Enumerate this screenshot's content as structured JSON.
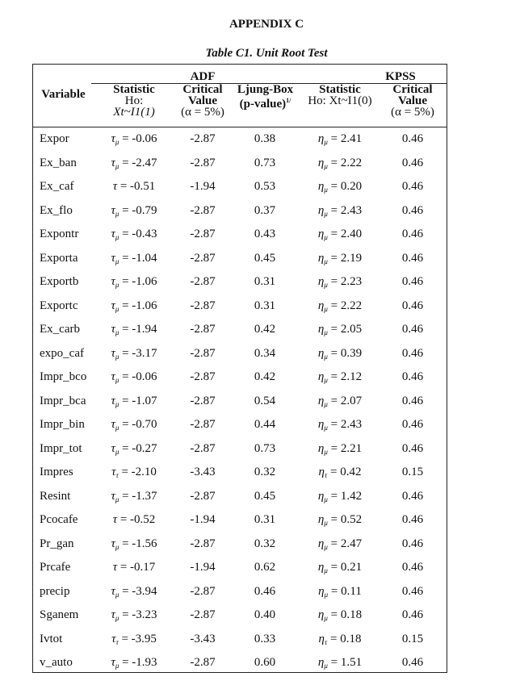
{
  "title": "APPENDIX C",
  "caption": "Table C1. Unit Root Test",
  "headers": {
    "variable": "Variable",
    "adf": "ADF",
    "kpss": "KPSS",
    "adf_stat": [
      "Statistic",
      "Ho:",
      "Xt~I1(1)"
    ],
    "adf_crit": [
      "Critical",
      "Value",
      "(α = 5%)"
    ],
    "ljung": [
      "Ljung-Box",
      "(p-value)",
      "1/"
    ],
    "kpss_stat": [
      "Statistic",
      "Ho: Xt~I1(0)"
    ],
    "kpss_crit": [
      "Critical",
      "Value",
      "(α = 5%)"
    ]
  },
  "rows": [
    {
      "variable": "Expor",
      "adf_sym": "τ",
      "adf_sub": "μ",
      "adf_stat": "= -0.06",
      "adf_crit": "-2.87",
      "ljung": "0.38",
      "kpss_sym": "η",
      "kpss_sub": "μ",
      "kpss_stat": "= 2.41",
      "kpss_crit": "0.46"
    },
    {
      "variable": "Ex_ban",
      "adf_sym": "τ",
      "adf_sub": "μ",
      "adf_stat": "= -2.47",
      "adf_crit": "-2.87",
      "ljung": "0.73",
      "kpss_sym": "η",
      "kpss_sub": "μ",
      "kpss_stat": "= 2.22",
      "kpss_crit": "0.46"
    },
    {
      "variable": "Ex_caf",
      "adf_sym": "τ",
      "adf_sub": "",
      "adf_stat": "= -0.51",
      "adf_crit": "-1.94",
      "ljung": "0.53",
      "kpss_sym": "η",
      "kpss_sub": "μ",
      "kpss_stat": "= 0.20",
      "kpss_crit": "0.46"
    },
    {
      "variable": "Ex_flo",
      "adf_sym": "τ",
      "adf_sub": "μ",
      "adf_stat": "= -0.79",
      "adf_crit": "-2.87",
      "ljung": "0.37",
      "kpss_sym": "η",
      "kpss_sub": "μ",
      "kpss_stat": "= 2.43",
      "kpss_crit": "0.46"
    },
    {
      "variable": "Expontr",
      "adf_sym": "τ",
      "adf_sub": "μ",
      "adf_stat": "= -0.43",
      "adf_crit": "-2.87",
      "ljung": "0.43",
      "kpss_sym": "η",
      "kpss_sub": "μ",
      "kpss_stat": "= 2.40",
      "kpss_crit": "0.46"
    },
    {
      "variable": "Exporta",
      "adf_sym": "τ",
      "adf_sub": "μ",
      "adf_stat": "= -1.04",
      "adf_crit": "-2.87",
      "ljung": "0.45",
      "kpss_sym": "η",
      "kpss_sub": "μ",
      "kpss_stat": "= 2.19",
      "kpss_crit": "0.46"
    },
    {
      "variable": "Exportb",
      "adf_sym": "τ",
      "adf_sub": "μ",
      "adf_stat": "= -1.06",
      "adf_crit": "-2.87",
      "ljung": "0.31",
      "kpss_sym": "η",
      "kpss_sub": "μ",
      "kpss_stat": "= 2.23",
      "kpss_crit": "0.46"
    },
    {
      "variable": "Exportc",
      "adf_sym": "τ",
      "adf_sub": "μ",
      "adf_stat": "= -1.06",
      "adf_crit": "-2.87",
      "ljung": "0.31",
      "kpss_sym": "η",
      "kpss_sub": "μ",
      "kpss_stat": "= 2.22",
      "kpss_crit": "0.46"
    },
    {
      "variable": "Ex_carb",
      "adf_sym": "τ",
      "adf_sub": "μ",
      "adf_stat": "= -1.94",
      "adf_crit": "-2.87",
      "ljung": "0.42",
      "kpss_sym": "η",
      "kpss_sub": "μ",
      "kpss_stat": "= 2.05",
      "kpss_crit": "0.46"
    },
    {
      "variable": "expo_caf",
      "adf_sym": "τ",
      "adf_sub": "μ",
      "adf_stat": "= -3.17",
      "adf_crit": "-2.87",
      "ljung": "0.34",
      "kpss_sym": "η",
      "kpss_sub": "μ",
      "kpss_stat": "= 0.39",
      "kpss_crit": "0.46"
    },
    {
      "variable": "Impr_bco",
      "adf_sym": "τ",
      "adf_sub": "μ",
      "adf_stat": "= -0.06",
      "adf_crit": "-2.87",
      "ljung": "0.42",
      "kpss_sym": "η",
      "kpss_sub": "μ",
      "kpss_stat": "= 2.12",
      "kpss_crit": "0.46"
    },
    {
      "variable": "Impr_bca",
      "adf_sym": "τ",
      "adf_sub": "μ",
      "adf_stat": "= -1.07",
      "adf_crit": "-2.87",
      "ljung": "0.54",
      "kpss_sym": "η",
      "kpss_sub": "μ",
      "kpss_stat": "= 2.07",
      "kpss_crit": "0.46"
    },
    {
      "variable": "Impr_bin",
      "adf_sym": "τ",
      "adf_sub": "μ",
      "adf_stat": "= -0.70",
      "adf_crit": "-2.87",
      "ljung": "0.44",
      "kpss_sym": "η",
      "kpss_sub": "μ",
      "kpss_stat": "= 2.43",
      "kpss_crit": "0.46"
    },
    {
      "variable": "Impr_tot",
      "adf_sym": "τ",
      "adf_sub": "μ",
      "adf_stat": "= -0.27",
      "adf_crit": "-2.87",
      "ljung": "0.73",
      "kpss_sym": "η",
      "kpss_sub": "μ",
      "kpss_stat": "= 2.21",
      "kpss_crit": "0.46"
    },
    {
      "variable": "Impres",
      "adf_sym": "τ",
      "adf_sub": "τ",
      "adf_stat": "= -2.10",
      "adf_crit": "-3.43",
      "ljung": "0.32",
      "kpss_sym": "η",
      "kpss_sub": "τ",
      "kpss_stat": "= 0.42",
      "kpss_crit": "0.15"
    },
    {
      "variable": "Resint",
      "adf_sym": "τ",
      "adf_sub": "μ",
      "adf_stat": "= -1.37",
      "adf_crit": "-2.87",
      "ljung": "0.45",
      "kpss_sym": "η",
      "kpss_sub": "μ",
      "kpss_stat": "= 1.42",
      "kpss_crit": "0.46"
    },
    {
      "variable": "Pcocafe",
      "adf_sym": "τ",
      "adf_sub": "",
      "adf_stat": "= -0.52",
      "adf_crit": "-1.94",
      "ljung": "0.31",
      "kpss_sym": "η",
      "kpss_sub": "μ",
      "kpss_stat": "= 0.52",
      "kpss_crit": "0.46"
    },
    {
      "variable": "Pr_gan",
      "adf_sym": "τ",
      "adf_sub": "μ",
      "adf_stat": "= -1.56",
      "adf_crit": "-2.87",
      "ljung": "0.32",
      "kpss_sym": "η",
      "kpss_sub": "μ",
      "kpss_stat": "= 2.47",
      "kpss_crit": "0.46"
    },
    {
      "variable": "Prcafe",
      "adf_sym": "τ",
      "adf_sub": "",
      "adf_stat": "= -0.17",
      "adf_crit": "-1.94",
      "ljung": "0.62",
      "kpss_sym": "η",
      "kpss_sub": "μ",
      "kpss_stat": "= 0.21",
      "kpss_crit": "0.46"
    },
    {
      "variable": "precip",
      "adf_sym": "τ",
      "adf_sub": "μ",
      "adf_stat": "= -3.94",
      "adf_crit": "-2.87",
      "ljung": "0.46",
      "kpss_sym": "η",
      "kpss_sub": "μ",
      "kpss_stat": "= 0.11",
      "kpss_crit": "0.46"
    },
    {
      "variable": "Sganem",
      "adf_sym": "τ",
      "adf_sub": "μ",
      "adf_stat": "= -3.23",
      "adf_crit": "-2.87",
      "ljung": "0.40",
      "kpss_sym": "η",
      "kpss_sub": "μ",
      "kpss_stat": "= 0.18",
      "kpss_crit": "0.46"
    },
    {
      "variable": "Ivtot",
      "adf_sym": "τ",
      "adf_sub": "τ",
      "adf_stat": "= -3.95",
      "adf_crit": "-3.43",
      "ljung": "0.33",
      "kpss_sym": "η",
      "kpss_sub": "τ",
      "kpss_stat": "= 0.18",
      "kpss_crit": "0.15"
    },
    {
      "variable": "v_auto",
      "adf_sym": "τ",
      "adf_sub": "μ",
      "adf_stat": "= -1.93",
      "adf_crit": "-2.87",
      "ljung": "0.60",
      "kpss_sym": "η",
      "kpss_sub": "μ",
      "kpss_stat": "= 1.51",
      "kpss_crit": "0.46"
    }
  ]
}
